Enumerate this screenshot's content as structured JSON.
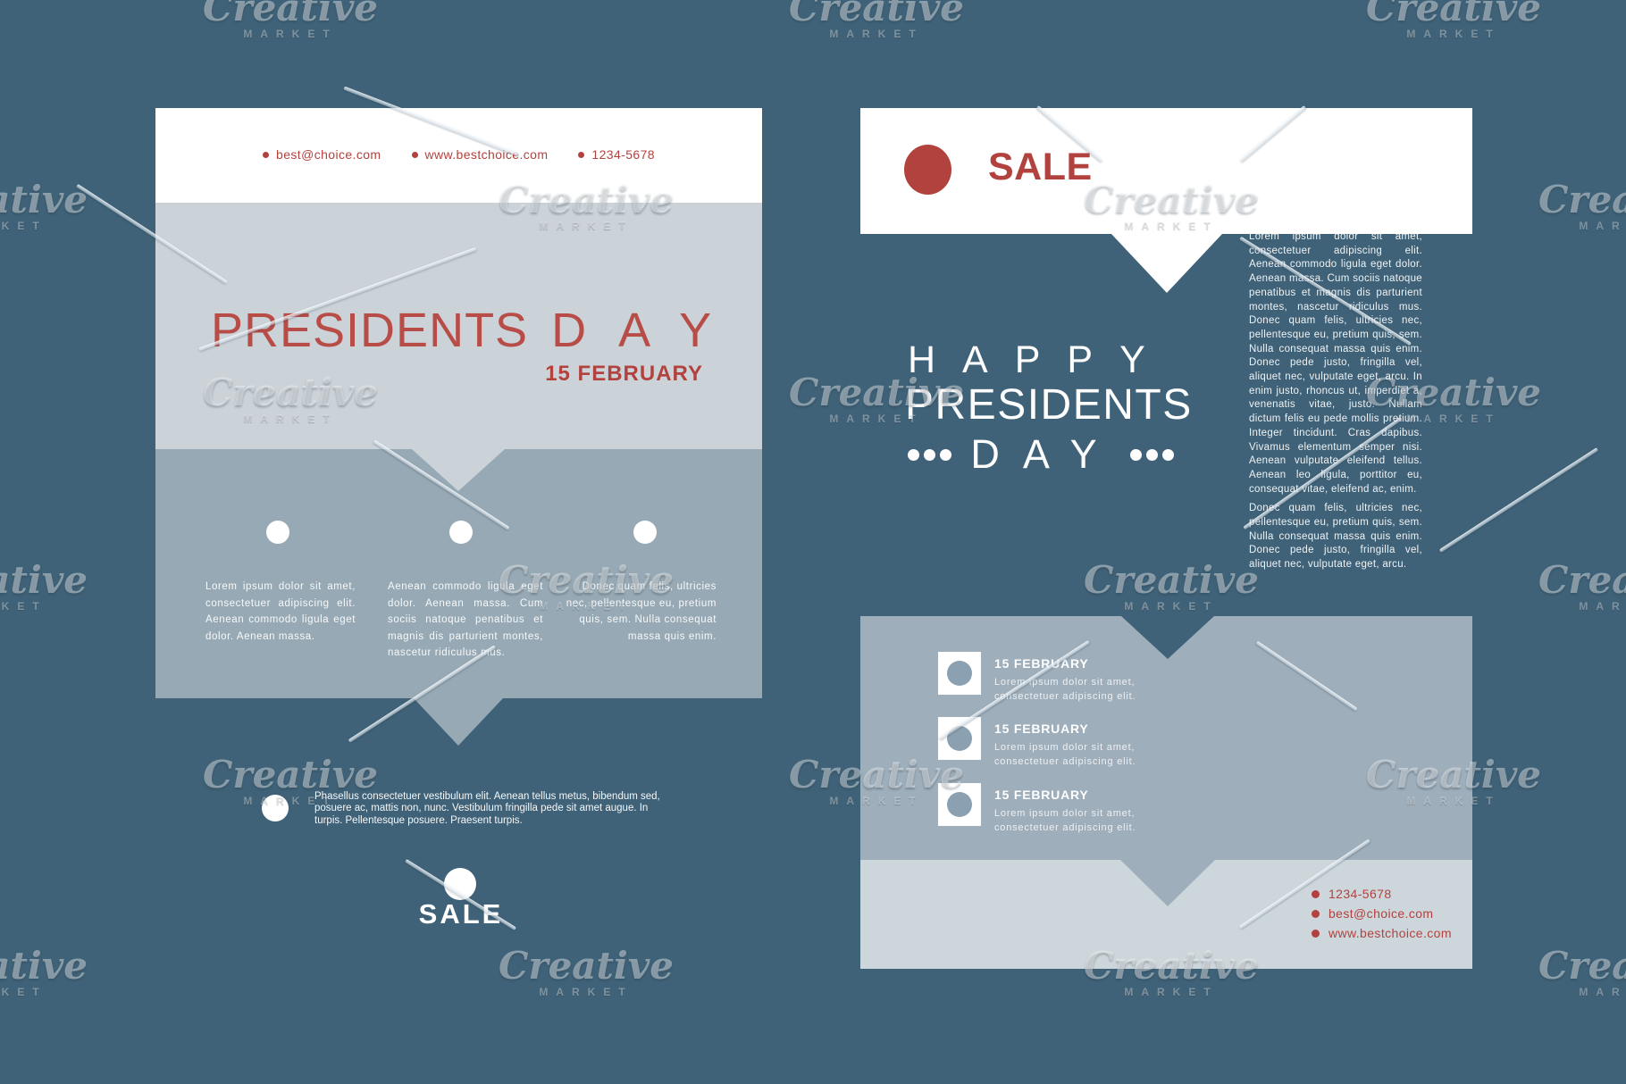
{
  "watermark": {
    "brand": "Creative",
    "sub": "MARKET"
  },
  "colors": {
    "background": "#3f6278",
    "accent_red": "#b2423e",
    "title_red": "#b84c46",
    "panel_light_gray": "#cbd3d9",
    "panel_medium_gray": "#97a9b4",
    "panel_right_gray": "#9eaebb",
    "panel_strip_gray": "#cdd6db",
    "white": "#ffffff"
  },
  "flyer_left": {
    "contacts": [
      {
        "label": "best@choice.com"
      },
      {
        "label": "www.bestchoice.com"
      },
      {
        "label": "1234-5678"
      }
    ],
    "title_main": "PRESIDENTS",
    "title_spaced": "DAY",
    "subtitle": "15 FEBRUARY",
    "columns": [
      {
        "text": "Lorem ipsum dolor sit amet, consectetuer adipiscing elit. Aenean commodo ligula eget dolor. Aenean massa."
      },
      {
        "text": "Aenean commodo ligula eget dolor. Aenean massa. Cum sociis natoque penatibus et magnis dis parturient montes, nascetur ridiculus mus."
      },
      {
        "text": "Donec quam felis, ultricies nec, pellentesque eu, pretium quis, sem. Nulla consequat massa quis enim."
      }
    ],
    "note": "Phasellus consectetuer vestibulum elit. Aenean tellus metus, bibendum sed, posuere ac, mattis non, nunc. Vestibulum fringilla pede sit amet augue. In turpis. Pellentesque posuere. Praesent turpis.",
    "sale_label": "SALE"
  },
  "flyer_right": {
    "sale_label": "SALE",
    "headline_line1": "HAPPY",
    "headline_line2": "PRESIDENTS",
    "headline_line3": "DAY",
    "body_paragraph1": "Lorem ipsum dolor sit amet, consectetuer adipiscing elit. Aenean commodo ligula eget dolor. Aenean massa. Cum sociis natoque penatibus et magnis dis parturient montes, nascetur ridiculus mus. Donec quam felis, ultricies nec, pellentesque eu, pretium quis, sem. Nulla consequat massa quis enim. Donec pede justo, fringilla vel, aliquet nec, vulputate eget, arcu. In enim justo, rhoncus ut, imperdiet a, venenatis vitae, justo. Nullam dictum felis eu pede mollis pretium. Integer tincidunt. Cras dapibus. Vivamus elementum semper nisi. Aenean vulputate eleifend tellus. Aenean leo ligula, porttitor eu, consequat vitae, eleifend ac, enim.",
    "body_paragraph2": "Donec quam felis, ultricies nec, pellentesque eu, pretium quis, sem. Nulla consequat massa quis enim. Donec pede justo, fringilla vel, aliquet nec, vulputate eget, arcu.",
    "events": [
      {
        "date": "15 FEBRUARY",
        "text": "Lorem ipsum dolor sit amet, consectetuer adipiscing elit."
      },
      {
        "date": "15 FEBRUARY",
        "text": "Lorem ipsum dolor sit amet, consectetuer adipiscing elit."
      },
      {
        "date": "15 FEBRUARY",
        "text": "Lorem ipsum dolor sit amet, consectetuer adipiscing elit."
      }
    ],
    "contacts": [
      {
        "label": "1234-5678"
      },
      {
        "label": "best@choice.com"
      },
      {
        "label": "www.bestchoice.com"
      }
    ]
  }
}
